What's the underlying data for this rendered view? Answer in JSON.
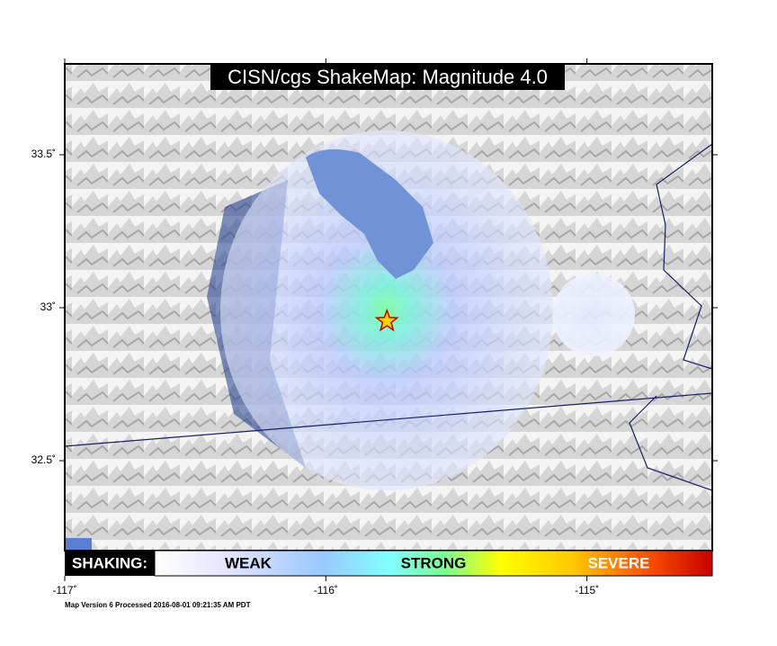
{
  "map": {
    "title": "CISN/cgs ShakeMap: Magnitude 4.0",
    "lonlim": [
      -117,
      -114.52
    ],
    "latlim": [
      32.206,
      33.797
    ],
    "lon_ticks": [
      {
        "value": -117,
        "label": "-117˚"
      },
      {
        "value": -116,
        "label": "-116˚"
      },
      {
        "value": -115,
        "label": "-115˚"
      }
    ],
    "lat_ticks": [
      {
        "value": 33.5,
        "label": "33.5˚"
      },
      {
        "value": 33,
        "label": "33˚"
      },
      {
        "value": 32.5,
        "label": "32.5˚"
      }
    ],
    "epicenter": {
      "lon": -115.766,
      "lat": 32.956
    },
    "legend": {
      "title": "SHAKING:",
      "labels": [
        "WEAK",
        "STRONG",
        "SEVERE"
      ]
    },
    "footer": "Map Version 6 Processed 2016-08-01 09:21:35 AM PDT"
  }
}
